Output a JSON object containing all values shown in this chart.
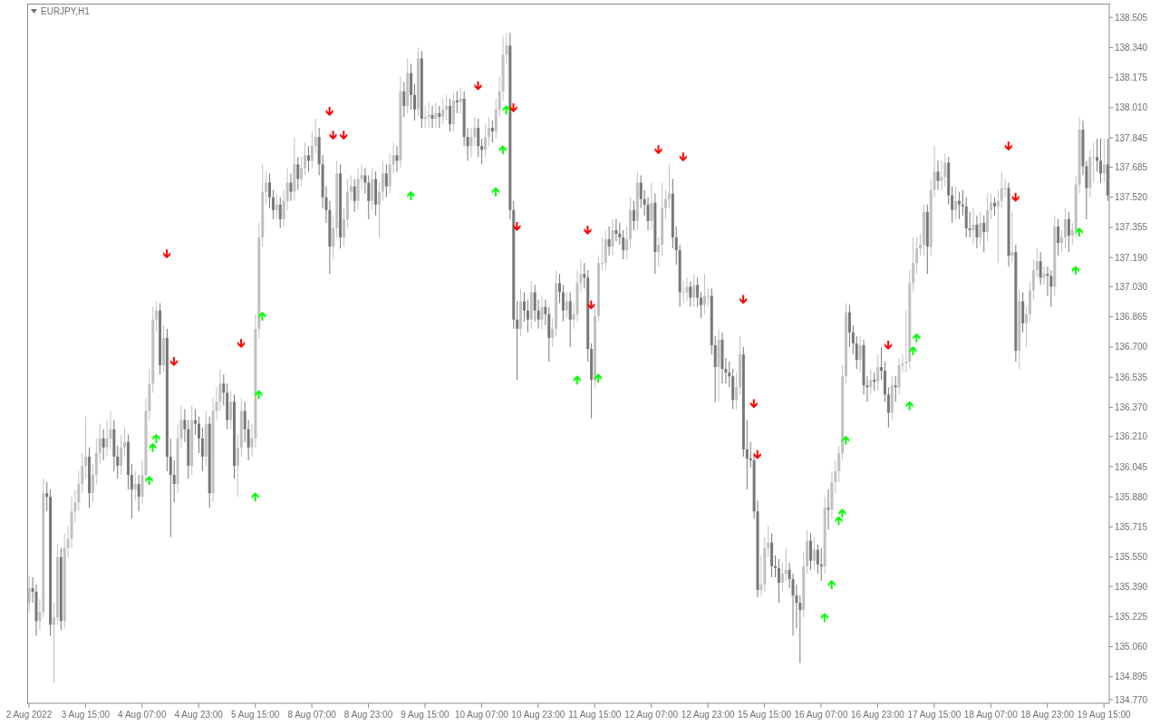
{
  "chart_data": {
    "type": "candlestick",
    "title": "EURJPY,H1",
    "categories": [
      "2 Aug 2022",
      null,
      null,
      null,
      null,
      null,
      null,
      null,
      null,
      null,
      null,
      null,
      null,
      null,
      null,
      null,
      "3 Aug 15:00",
      null,
      null,
      null,
      null,
      null,
      null,
      null,
      null,
      null,
      null,
      null,
      null,
      null,
      null,
      null,
      "4 Aug 07:00",
      null,
      null,
      null,
      null,
      null,
      null,
      null,
      null,
      null,
      null,
      null,
      null,
      null,
      null,
      null,
      "4 Aug 23:00",
      null,
      null,
      null,
      null,
      null,
      null,
      null,
      null,
      null,
      null,
      null,
      null,
      null,
      null,
      null,
      "5 Aug 15:00",
      null,
      null,
      null,
      null,
      null,
      null,
      null,
      null,
      null,
      null,
      null,
      null,
      null,
      null,
      null,
      "8 Aug 07:00",
      null,
      null,
      null,
      null,
      null,
      null,
      null,
      null,
      null,
      null,
      null,
      null,
      null,
      null,
      null,
      "8 Aug 23:00",
      null,
      null,
      null,
      null,
      null,
      null,
      null,
      null,
      null,
      null,
      null,
      null,
      null,
      null,
      null,
      "9 Aug 15:00",
      null,
      null,
      null,
      null,
      null,
      null,
      null,
      null,
      null,
      null,
      null,
      null,
      null,
      null,
      null,
      "10 Aug 07:00",
      null,
      null,
      null,
      null,
      null,
      null,
      null,
      null,
      null,
      null,
      null,
      null,
      null,
      null,
      null,
      "10 Aug 23:00",
      null,
      null,
      null,
      null,
      null,
      null,
      null,
      null,
      null,
      null,
      null,
      null,
      null,
      null,
      null,
      "11 Aug 15:00",
      null,
      null,
      null,
      null,
      null,
      null,
      null,
      null,
      null,
      null,
      null,
      null,
      null,
      null,
      null,
      "12 Aug 07:00",
      null,
      null,
      null,
      null,
      null,
      null,
      null,
      null,
      null,
      null,
      null,
      null,
      null,
      null,
      null,
      "12 Aug 23:00",
      null,
      null,
      null,
      null,
      null,
      null,
      null,
      null,
      null,
      null,
      null,
      null,
      null,
      null,
      null,
      "15 Aug 15:00",
      null,
      null,
      null,
      null,
      null,
      null,
      null,
      null,
      null,
      null,
      null,
      null,
      null,
      null,
      null,
      "16 Aug 07:00",
      null,
      null,
      null,
      null,
      null,
      null,
      null,
      null,
      null,
      null,
      null,
      null,
      null,
      null,
      null,
      "16 Aug 23:00",
      null,
      null,
      null,
      null,
      null,
      null,
      null,
      null,
      null,
      null,
      null,
      null,
      null,
      null,
      null,
      "17 Aug 15:00",
      null,
      null,
      null,
      null,
      null,
      null,
      null,
      null,
      null,
      null,
      null,
      null,
      null,
      null,
      null,
      "18 Aug 07:00",
      null,
      null,
      null,
      null,
      null,
      null,
      null,
      null,
      null,
      null,
      null,
      null,
      null,
      null,
      null,
      "18 Aug 23:00",
      null,
      null,
      null,
      null,
      null,
      null,
      null,
      null,
      null,
      null,
      null,
      null,
      null,
      null,
      null,
      "19 Aug 15:00",
      null
    ],
    "ohlc": [
      [
        135.3,
        135.45,
        135.25,
        135.38
      ],
      [
        135.38,
        135.44,
        135.3,
        135.36
      ],
      [
        135.36,
        135.4,
        135.12,
        135.2
      ],
      [
        135.2,
        135.32,
        135.15,
        135.25
      ],
      [
        135.25,
        135.98,
        135.22,
        135.9
      ],
      [
        135.9,
        135.96,
        135.8,
        135.88
      ],
      [
        135.88,
        135.92,
        135.12,
        135.18
      ],
      [
        135.18,
        135.3,
        134.86,
        135.22
      ],
      [
        135.22,
        135.62,
        135.18,
        135.55
      ],
      [
        135.55,
        135.6,
        135.15,
        135.2
      ],
      [
        135.2,
        135.68,
        135.16,
        135.6
      ],
      [
        135.6,
        135.72,
        135.55,
        135.65
      ],
      [
        135.65,
        135.88,
        135.6,
        135.8
      ],
      [
        135.8,
        135.92,
        135.74,
        135.85
      ],
      [
        135.85,
        136.02,
        135.8,
        135.95
      ],
      [
        135.95,
        136.12,
        135.9,
        136.05
      ],
      [
        136.05,
        136.32,
        135.98,
        136.1
      ],
      [
        136.1,
        136.15,
        135.82,
        135.9
      ],
      [
        135.9,
        136.06,
        135.85,
        136.0
      ],
      [
        136.0,
        136.2,
        135.95,
        136.12
      ],
      [
        136.12,
        136.28,
        136.06,
        136.2
      ],
      [
        136.2,
        136.25,
        136.08,
        136.15
      ],
      [
        136.15,
        136.3,
        136.1,
        136.2
      ],
      [
        136.2,
        136.35,
        136.14,
        136.25
      ],
      [
        136.25,
        136.3,
        136.02,
        136.1
      ],
      [
        136.1,
        136.16,
        135.98,
        136.05
      ],
      [
        136.05,
        136.22,
        136.0,
        136.15
      ],
      [
        136.15,
        136.26,
        136.1,
        136.18
      ],
      [
        136.18,
        136.22,
        135.92,
        136.0
      ],
      [
        136.0,
        136.06,
        135.76,
        135.92
      ],
      [
        135.92,
        136.02,
        135.86,
        135.95
      ],
      [
        135.95,
        136.0,
        135.8,
        135.88
      ],
      [
        135.88,
        136.08,
        135.84,
        136.0
      ],
      [
        136.0,
        136.42,
        135.96,
        136.35
      ],
      [
        136.35,
        136.58,
        136.3,
        136.5
      ],
      [
        136.5,
        136.92,
        136.45,
        136.85
      ],
      [
        136.85,
        136.95,
        136.78,
        136.9
      ],
      [
        136.9,
        136.94,
        136.55,
        136.6
      ],
      [
        136.6,
        136.82,
        136.56,
        136.75
      ],
      [
        136.75,
        136.8,
        136.02,
        136.1
      ],
      [
        136.1,
        136.2,
        135.66,
        136.0
      ],
      [
        136.0,
        136.08,
        135.85,
        135.95
      ],
      [
        135.95,
        136.28,
        135.9,
        136.2
      ],
      [
        136.2,
        136.38,
        136.15,
        136.3
      ],
      [
        136.3,
        136.36,
        136.18,
        136.25
      ],
      [
        136.25,
        136.3,
        135.98,
        136.05
      ],
      [
        136.05,
        136.38,
        136.0,
        136.3
      ],
      [
        136.3,
        136.36,
        136.22,
        136.28
      ],
      [
        136.28,
        136.32,
        136.12,
        136.2
      ],
      [
        136.2,
        136.26,
        136.02,
        136.1
      ],
      [
        136.1,
        136.35,
        136.05,
        136.28
      ],
      [
        136.28,
        136.32,
        135.82,
        135.9
      ],
      [
        135.9,
        136.42,
        135.85,
        136.35
      ],
      [
        136.35,
        136.48,
        136.3,
        136.4
      ],
      [
        136.4,
        136.58,
        136.35,
        136.5
      ],
      [
        136.5,
        136.55,
        136.38,
        136.45
      ],
      [
        136.45,
        136.5,
        136.25,
        136.3
      ],
      [
        136.3,
        136.46,
        136.25,
        136.4
      ],
      [
        136.4,
        136.44,
        135.98,
        136.05
      ],
      [
        136.05,
        136.22,
        135.88,
        136.15
      ],
      [
        136.15,
        136.42,
        136.1,
        136.35
      ],
      [
        136.35,
        136.4,
        136.18,
        136.25
      ],
      [
        136.25,
        136.3,
        136.08,
        136.15
      ],
      [
        136.15,
        136.28,
        136.1,
        136.2
      ],
      [
        136.2,
        136.88,
        136.15,
        136.8
      ],
      [
        136.8,
        137.38,
        136.75,
        137.3
      ],
      [
        137.3,
        137.7,
        137.25,
        137.55
      ],
      [
        137.55,
        137.66,
        137.48,
        137.6
      ],
      [
        137.6,
        137.65,
        137.46,
        137.52
      ],
      [
        137.52,
        137.56,
        137.4,
        137.45
      ],
      [
        137.45,
        137.54,
        137.4,
        137.48
      ],
      [
        137.48,
        137.52,
        137.35,
        137.4
      ],
      [
        137.4,
        137.56,
        137.36,
        137.5
      ],
      [
        137.5,
        137.68,
        137.45,
        137.6
      ],
      [
        137.6,
        137.65,
        137.5,
        137.55
      ],
      [
        137.55,
        137.85,
        137.5,
        137.7
      ],
      [
        137.7,
        137.74,
        137.56,
        137.62
      ],
      [
        137.62,
        137.74,
        137.58,
        137.68
      ],
      [
        137.68,
        137.82,
        137.64,
        137.75
      ],
      [
        137.75,
        137.8,
        137.66,
        137.72
      ],
      [
        137.72,
        137.88,
        137.68,
        137.8
      ],
      [
        137.8,
        137.95,
        137.76,
        137.85
      ],
      [
        137.85,
        137.9,
        137.64,
        137.7
      ],
      [
        137.7,
        137.75,
        137.46,
        137.52
      ],
      [
        137.52,
        137.58,
        137.38,
        137.45
      ],
      [
        137.45,
        137.5,
        137.1,
        137.25
      ],
      [
        137.25,
        137.42,
        137.18,
        137.35
      ],
      [
        137.35,
        137.72,
        137.3,
        137.65
      ],
      [
        137.65,
        137.7,
        137.24,
        137.3
      ],
      [
        137.3,
        137.46,
        137.25,
        137.4
      ],
      [
        137.4,
        137.62,
        137.35,
        137.55
      ],
      [
        137.55,
        137.64,
        137.5,
        137.58
      ],
      [
        137.58,
        137.62,
        137.44,
        137.5
      ],
      [
        137.5,
        137.68,
        137.45,
        137.62
      ],
      [
        137.62,
        137.7,
        137.56,
        137.64
      ],
      [
        137.64,
        137.68,
        137.54,
        137.6
      ],
      [
        137.6,
        137.64,
        137.4,
        137.5
      ],
      [
        137.5,
        137.68,
        137.45,
        137.62
      ],
      [
        137.62,
        137.66,
        137.42,
        137.48
      ],
      [
        137.48,
        137.6,
        137.3,
        137.55
      ],
      [
        137.55,
        137.72,
        137.5,
        137.65
      ],
      [
        137.65,
        137.7,
        137.52,
        137.58
      ],
      [
        137.58,
        137.76,
        137.54,
        137.7
      ],
      [
        137.7,
        137.82,
        137.65,
        137.75
      ],
      [
        137.75,
        137.8,
        137.66,
        137.72
      ],
      [
        137.72,
        138.18,
        137.68,
        138.1
      ],
      [
        138.1,
        138.15,
        137.96,
        138.02
      ],
      [
        138.02,
        138.28,
        137.98,
        138.2
      ],
      [
        138.2,
        138.25,
        138.0,
        138.08
      ],
      [
        138.08,
        138.14,
        137.94,
        138.0
      ],
      [
        138.0,
        138.34,
        137.96,
        138.28
      ],
      [
        138.28,
        138.32,
        137.9,
        137.95
      ],
      [
        137.95,
        138.02,
        137.9,
        137.96
      ],
      [
        137.96,
        138.04,
        137.9,
        137.97
      ],
      [
        137.97,
        138.02,
        137.9,
        137.95
      ],
      [
        137.95,
        138.04,
        137.9,
        137.98
      ],
      [
        137.98,
        138.02,
        137.9,
        137.96
      ],
      [
        137.96,
        138.06,
        137.92,
        138.0
      ],
      [
        138.0,
        138.08,
        137.94,
        138.02
      ],
      [
        138.02,
        138.06,
        137.88,
        137.92
      ],
      [
        137.92,
        138.1,
        137.88,
        138.05
      ],
      [
        138.05,
        138.1,
        137.98,
        138.04
      ],
      [
        138.04,
        138.12,
        137.98,
        138.06
      ],
      [
        138.06,
        138.1,
        137.8,
        137.85
      ],
      [
        137.85,
        137.9,
        137.72,
        137.8
      ],
      [
        137.8,
        137.9,
        137.74,
        137.85
      ],
      [
        137.85,
        137.96,
        137.8,
        137.9
      ],
      [
        137.9,
        137.95,
        137.74,
        137.8
      ],
      [
        137.8,
        137.84,
        137.7,
        137.78
      ],
      [
        137.78,
        137.92,
        137.74,
        137.85
      ],
      [
        137.85,
        137.96,
        137.8,
        137.9
      ],
      [
        137.9,
        137.94,
        137.82,
        137.88
      ],
      [
        137.88,
        138.06,
        137.84,
        138.0
      ],
      [
        138.0,
        138.18,
        137.96,
        138.1
      ],
      [
        138.1,
        138.4,
        138.05,
        138.3
      ],
      [
        138.3,
        138.42,
        138.25,
        138.35
      ],
      [
        138.35,
        138.42,
        137.4,
        137.45
      ],
      [
        137.45,
        137.5,
        136.8,
        136.85
      ],
      [
        136.85,
        136.95,
        136.52,
        136.8
      ],
      [
        136.8,
        137.02,
        136.76,
        136.95
      ],
      [
        136.95,
        137.0,
        136.84,
        136.9
      ],
      [
        136.9,
        136.96,
        136.78,
        136.85
      ],
      [
        136.85,
        137.06,
        136.8,
        137.0
      ],
      [
        137.0,
        137.04,
        136.84,
        136.9
      ],
      [
        136.9,
        136.96,
        136.8,
        136.85
      ],
      [
        136.85,
        136.98,
        136.8,
        136.92
      ],
      [
        136.92,
        136.96,
        136.82,
        136.88
      ],
      [
        136.88,
        136.92,
        136.62,
        136.75
      ],
      [
        136.75,
        136.86,
        136.7,
        136.8
      ],
      [
        136.8,
        137.12,
        136.76,
        137.05
      ],
      [
        137.05,
        137.1,
        136.94,
        137.0
      ],
      [
        137.0,
        137.04,
        136.84,
        136.9
      ],
      [
        136.9,
        137.0,
        136.86,
        136.95
      ],
      [
        136.95,
        137.0,
        136.7,
        136.85
      ],
      [
        136.85,
        136.94,
        136.8,
        136.88
      ],
      [
        136.88,
        137.12,
        136.84,
        137.05
      ],
      [
        137.05,
        137.18,
        137.0,
        137.1
      ],
      [
        137.1,
        137.16,
        137.02,
        137.08
      ],
      [
        137.08,
        137.12,
        136.62,
        136.69
      ],
      [
        136.69,
        136.72,
        136.31,
        136.52
      ],
      [
        136.52,
        136.92,
        136.48,
        136.87
      ],
      [
        136.87,
        137.2,
        136.84,
        137.16
      ],
      [
        137.16,
        137.3,
        137.12,
        137.16
      ],
      [
        137.16,
        137.34,
        137.12,
        137.29
      ],
      [
        137.29,
        137.36,
        137.2,
        137.25
      ],
      [
        137.25,
        137.4,
        137.2,
        137.34
      ],
      [
        137.34,
        137.4,
        137.28,
        137.32
      ],
      [
        137.32,
        137.38,
        137.26,
        137.3
      ],
      [
        137.3,
        137.34,
        137.18,
        137.23
      ],
      [
        137.23,
        137.36,
        137.18,
        137.29
      ],
      [
        137.29,
        137.52,
        137.24,
        137.45
      ],
      [
        137.45,
        137.5,
        137.34,
        137.39
      ],
      [
        137.39,
        137.66,
        137.34,
        137.6
      ],
      [
        137.6,
        137.64,
        137.46,
        137.51
      ],
      [
        137.51,
        137.56,
        137.42,
        137.48
      ],
      [
        137.48,
        137.52,
        137.34,
        137.39
      ],
      [
        137.39,
        137.6,
        137.34,
        137.49
      ],
      [
        137.49,
        137.54,
        137.1,
        137.22
      ],
      [
        137.22,
        137.3,
        137.14,
        137.26
      ],
      [
        137.26,
        137.6,
        137.2,
        137.46
      ],
      [
        137.46,
        137.56,
        137.4,
        137.51
      ],
      [
        137.51,
        137.7,
        137.46,
        137.54
      ],
      [
        137.54,
        137.62,
        137.24,
        137.3
      ],
      [
        137.3,
        137.36,
        137.15,
        137.23
      ],
      [
        137.23,
        137.26,
        136.92,
        137.0
      ],
      [
        137.0,
        137.06,
        136.94,
        137.0
      ],
      [
        137.0,
        137.08,
        136.95,
        137.03
      ],
      [
        137.03,
        137.06,
        136.92,
        136.97
      ],
      [
        136.97,
        137.1,
        136.92,
        137.04
      ],
      [
        137.04,
        137.08,
        136.92,
        136.97
      ],
      [
        136.97,
        137.0,
        136.86,
        136.93
      ],
      [
        136.93,
        137.1,
        136.88,
        136.98
      ],
      [
        136.98,
        137.02,
        136.92,
        136.98
      ],
      [
        136.98,
        137.02,
        136.66,
        136.71
      ],
      [
        136.71,
        136.76,
        136.4,
        136.59
      ],
      [
        136.59,
        136.8,
        136.4,
        136.74
      ],
      [
        136.74,
        136.78,
        136.5,
        136.58
      ],
      [
        136.58,
        136.64,
        136.5,
        136.56
      ],
      [
        136.56,
        136.62,
        136.48,
        136.54
      ],
      [
        136.54,
        136.58,
        136.36,
        136.41
      ],
      [
        136.41,
        136.56,
        136.36,
        136.48
      ],
      [
        136.48,
        136.76,
        136.44,
        136.66
      ],
      [
        136.66,
        136.7,
        136.1,
        136.14
      ],
      [
        136.14,
        136.3,
        135.92,
        136.09
      ],
      [
        136.09,
        136.18,
        136.04,
        136.08
      ],
      [
        136.08,
        136.12,
        135.76,
        135.8
      ],
      [
        135.8,
        135.86,
        135.33,
        135.37
      ],
      [
        135.37,
        135.56,
        135.34,
        135.4
      ],
      [
        135.4,
        135.66,
        135.36,
        135.6
      ],
      [
        135.6,
        135.72,
        135.55,
        135.63
      ],
      [
        135.63,
        135.68,
        135.44,
        135.5
      ],
      [
        135.5,
        135.56,
        135.44,
        135.49
      ],
      [
        135.49,
        135.54,
        135.3,
        135.41
      ],
      [
        135.41,
        135.52,
        135.36,
        135.46
      ],
      [
        135.46,
        135.6,
        135.42,
        135.48
      ],
      [
        135.48,
        135.52,
        135.38,
        135.43
      ],
      [
        135.43,
        135.46,
        135.12,
        135.34
      ],
      [
        135.34,
        135.4,
        135.16,
        135.3
      ],
      [
        135.3,
        135.34,
        134.97,
        135.26
      ],
      [
        135.26,
        135.58,
        135.22,
        135.5
      ],
      [
        135.5,
        135.7,
        135.46,
        135.64
      ],
      [
        135.64,
        135.68,
        135.48,
        135.53
      ],
      [
        135.53,
        135.66,
        135.48,
        135.59
      ],
      [
        135.59,
        135.62,
        135.46,
        135.51
      ],
      [
        135.51,
        135.6,
        135.42,
        135.5
      ],
      [
        135.5,
        135.88,
        135.46,
        135.82
      ],
      [
        135.82,
        135.92,
        135.7,
        135.81
      ],
      [
        135.81,
        136.02,
        135.76,
        135.96
      ],
      [
        135.96,
        136.08,
        135.9,
        136.02
      ],
      [
        136.02,
        136.16,
        135.96,
        136.12
      ],
      [
        136.12,
        136.6,
        136.08,
        136.54
      ],
      [
        136.54,
        136.94,
        136.5,
        136.89
      ],
      [
        136.89,
        136.93,
        136.7,
        136.78
      ],
      [
        136.78,
        136.82,
        136.66,
        136.72
      ],
      [
        136.72,
        136.76,
        136.58,
        136.63
      ],
      [
        136.63,
        136.76,
        136.56,
        136.71
      ],
      [
        136.71,
        136.74,
        136.44,
        136.49
      ],
      [
        136.49,
        136.54,
        136.4,
        136.48
      ],
      [
        136.48,
        136.58,
        136.44,
        136.52
      ],
      [
        136.52,
        136.56,
        136.46,
        136.51
      ],
      [
        136.51,
        136.66,
        136.46,
        136.59
      ],
      [
        136.59,
        136.7,
        136.52,
        136.57
      ],
      [
        136.57,
        136.62,
        136.4,
        136.44
      ],
      [
        136.44,
        136.48,
        136.26,
        136.34
      ],
      [
        136.34,
        136.54,
        136.3,
        136.49
      ],
      [
        136.49,
        136.54,
        136.4,
        136.48
      ],
      [
        136.48,
        136.64,
        136.44,
        136.6
      ],
      [
        136.6,
        136.66,
        136.56,
        136.61
      ],
      [
        136.61,
        136.9,
        136.56,
        136.62
      ],
      [
        136.62,
        137.12,
        136.58,
        137.05
      ],
      [
        137.05,
        137.3,
        137.0,
        137.16
      ],
      [
        137.16,
        137.3,
        137.1,
        137.24
      ],
      [
        137.24,
        137.32,
        137.2,
        137.26
      ],
      [
        137.26,
        137.48,
        137.2,
        137.44
      ],
      [
        137.44,
        137.48,
        137.1,
        137.25
      ],
      [
        137.25,
        137.62,
        137.2,
        137.56
      ],
      [
        137.56,
        137.8,
        137.52,
        137.66
      ],
      [
        137.66,
        137.72,
        137.56,
        137.61
      ],
      [
        137.61,
        137.72,
        137.56,
        137.63
      ],
      [
        137.63,
        137.76,
        137.58,
        137.71
      ],
      [
        137.71,
        137.74,
        137.48,
        137.53
      ],
      [
        137.53,
        137.58,
        137.38,
        137.45
      ],
      [
        137.45,
        137.58,
        137.4,
        137.5
      ],
      [
        137.5,
        137.55,
        137.4,
        137.48
      ],
      [
        137.48,
        137.56,
        137.42,
        137.47
      ],
      [
        137.47,
        137.52,
        137.3,
        137.35
      ],
      [
        137.35,
        137.44,
        137.3,
        137.34
      ],
      [
        137.34,
        137.46,
        137.26,
        137.37
      ],
      [
        137.37,
        137.42,
        137.24,
        137.3
      ],
      [
        137.3,
        137.44,
        137.26,
        137.38
      ],
      [
        137.38,
        137.42,
        137.22,
        137.33
      ],
      [
        137.33,
        137.54,
        137.28,
        137.45
      ],
      [
        137.45,
        137.54,
        137.4,
        137.49
      ],
      [
        137.49,
        137.52,
        137.42,
        137.47
      ],
      [
        137.47,
        137.56,
        137.16,
        137.5
      ],
      [
        137.5,
        137.66,
        137.46,
        137.57
      ],
      [
        137.57,
        137.62,
        137.52,
        137.57
      ],
      [
        137.57,
        137.6,
        137.14,
        137.2
      ],
      [
        137.2,
        137.44,
        137.16,
        137.22
      ],
      [
        137.22,
        137.26,
        136.62,
        136.68
      ],
      [
        136.68,
        137.02,
        136.58,
        136.95
      ],
      [
        136.95,
        137.0,
        136.78,
        136.83
      ],
      [
        136.83,
        136.92,
        136.7,
        136.88
      ],
      [
        136.88,
        137.06,
        136.84,
        137.01
      ],
      [
        137.01,
        137.18,
        136.96,
        137.12
      ],
      [
        137.12,
        137.24,
        137.08,
        137.17
      ],
      [
        137.17,
        137.22,
        137.04,
        137.08
      ],
      [
        137.08,
        137.14,
        137.04,
        137.1
      ],
      [
        137.1,
        137.14,
        136.98,
        137.09
      ],
      [
        137.09,
        137.12,
        136.92,
        137.03
      ],
      [
        137.03,
        137.42,
        136.98,
        137.36
      ],
      [
        137.36,
        137.4,
        137.2,
        137.27
      ],
      [
        137.27,
        137.34,
        137.22,
        137.3
      ],
      [
        137.3,
        137.46,
        137.24,
        137.4
      ],
      [
        137.4,
        137.44,
        137.22,
        137.31
      ],
      [
        137.31,
        137.38,
        137.26,
        137.34
      ],
      [
        137.34,
        137.64,
        137.3,
        137.59
      ],
      [
        137.59,
        137.96,
        137.54,
        137.89
      ],
      [
        137.89,
        137.94,
        137.64,
        137.69
      ],
      [
        137.69,
        137.72,
        137.4,
        137.57
      ],
      [
        137.57,
        137.78,
        137.52,
        137.74
      ],
      [
        137.74,
        137.82,
        137.6,
        137.74
      ],
      [
        137.74,
        137.84,
        137.66,
        137.72
      ],
      [
        137.72,
        137.84,
        137.6,
        137.65
      ],
      [
        137.65,
        137.84,
        137.6,
        137.7
      ],
      [
        137.7,
        137.84,
        137.5,
        137.53
      ]
    ],
    "series": [
      {
        "type": "scatter",
        "color": "#ff0000",
        "values": [
          null,
          null,
          null,
          null,
          null,
          null,
          null,
          null,
          null,
          null,
          null,
          null,
          null,
          null,
          null,
          null,
          null,
          null,
          null,
          null,
          null,
          null,
          null,
          null,
          null,
          null,
          null,
          null,
          null,
          null,
          null,
          null,
          null,
          null,
          null,
          null,
          null,
          null,
          null,
          137.21,
          null,
          136.62,
          null,
          null,
          null,
          null,
          null,
          null,
          null,
          null,
          null,
          null,
          null,
          null,
          null,
          null,
          null,
          null,
          null,
          null,
          136.72,
          null,
          null,
          null,
          null,
          null,
          null,
          null,
          null,
          null,
          null,
          null,
          null,
          null,
          null,
          null,
          null,
          null,
          null,
          null,
          null,
          null,
          null,
          null,
          null,
          137.99,
          137.86,
          null,
          null,
          137.86,
          null,
          null,
          null,
          null,
          null,
          null,
          null,
          null,
          null,
          null,
          null,
          null,
          null,
          null,
          null,
          null,
          null,
          null,
          null,
          null,
          null,
          null,
          null,
          null,
          null,
          null,
          null,
          null,
          null,
          null,
          null,
          null,
          null,
          null,
          null,
          null,
          null,
          138.13,
          null,
          null,
          null,
          null,
          null,
          null,
          null,
          null,
          null,
          138.01,
          137.36,
          null,
          null,
          null,
          null,
          null,
          null,
          null,
          null,
          null,
          null,
          null,
          null,
          null,
          null,
          null,
          null,
          null,
          null,
          null,
          137.34,
          136.93,
          null,
          null,
          null,
          null,
          null,
          null,
          null,
          null,
          null,
          null,
          null,
          null,
          null,
          null,
          null,
          null,
          null,
          null,
          137.78,
          null,
          null,
          null,
          null,
          null,
          null,
          137.74,
          null,
          null,
          null,
          null,
          null,
          null,
          null,
          null,
          null,
          null,
          null,
          null,
          null,
          null,
          null,
          null,
          136.96,
          null,
          null,
          136.39,
          136.11,
          null,
          null,
          null,
          null,
          null,
          null,
          null,
          null,
          null,
          null,
          null,
          null,
          null,
          null,
          null,
          null,
          null,
          null,
          null,
          null,
          null,
          null,
          null,
          null,
          null,
          null,
          null,
          null,
          null,
          null,
          null,
          null,
          null,
          null,
          null,
          null,
          136.71,
          null,
          null,
          null,
          null,
          null,
          null,
          null,
          null,
          null,
          null,
          null,
          null,
          null,
          null,
          null,
          null,
          null,
          null,
          null,
          null,
          null,
          null,
          null,
          null,
          null,
          null,
          null,
          null,
          null,
          null,
          null,
          null,
          null,
          137.8,
          null,
          137.52,
          null,
          null,
          null,
          null,
          null,
          null,
          null,
          null,
          null,
          null,
          null,
          null,
          null,
          null,
          null,
          null,
          null,
          null,
          null,
          null,
          null,
          null,
          null,
          null,
          null,
          null
        ]
      },
      {
        "type": "scatter",
        "color": "#00ff00",
        "values": [
          null,
          null,
          null,
          null,
          null,
          null,
          null,
          null,
          null,
          null,
          null,
          null,
          null,
          null,
          null,
          null,
          null,
          null,
          null,
          null,
          null,
          null,
          null,
          null,
          null,
          null,
          null,
          null,
          null,
          null,
          null,
          null,
          null,
          null,
          135.97,
          136.15,
          136.2,
          null,
          null,
          null,
          null,
          null,
          null,
          null,
          null,
          null,
          null,
          null,
          null,
          null,
          null,
          null,
          null,
          null,
          null,
          null,
          null,
          null,
          null,
          null,
          null,
          null,
          null,
          null,
          135.88,
          136.44,
          136.87,
          null,
          null,
          null,
          null,
          null,
          null,
          null,
          null,
          null,
          null,
          null,
          null,
          null,
          null,
          null,
          null,
          null,
          null,
          null,
          null,
          null,
          null,
          null,
          null,
          null,
          null,
          null,
          null,
          null,
          null,
          null,
          null,
          null,
          null,
          null,
          null,
          null,
          null,
          null,
          null,
          null,
          137.53,
          null,
          null,
          null,
          null,
          null,
          null,
          null,
          null,
          null,
          null,
          null,
          null,
          null,
          null,
          null,
          null,
          null,
          null,
          null,
          null,
          null,
          null,
          null,
          137.55,
          null,
          137.78,
          138.0,
          null,
          null,
          null,
          null,
          null,
          null,
          null,
          null,
          null,
          null,
          null,
          null,
          null,
          null,
          null,
          null,
          null,
          null,
          null,
          136.52,
          null,
          null,
          null,
          null,
          null,
          136.53,
          null,
          null,
          null,
          null,
          null,
          null,
          null,
          null,
          null,
          null,
          null,
          null,
          null,
          null,
          null,
          null,
          null,
          null,
          null,
          null,
          null,
          null,
          null,
          null,
          null,
          null,
          null,
          null,
          null,
          null,
          null,
          null,
          null,
          null,
          null,
          null,
          null,
          null,
          null,
          null,
          null,
          null,
          null,
          null,
          null,
          null,
          null,
          null,
          null,
          null,
          null,
          null,
          null,
          null,
          null,
          null,
          null,
          null,
          null,
          null,
          null,
          null,
          null,
          135.22,
          null,
          135.4,
          null,
          135.75,
          135.79,
          136.19,
          null,
          null,
          null,
          null,
          null,
          null,
          null,
          null,
          null,
          null,
          null,
          null,
          null,
          null,
          null,
          null,
          null,
          136.38,
          136.68,
          136.75,
          null,
          null,
          null,
          null,
          null,
          null,
          null,
          null,
          null,
          null,
          null,
          null,
          null,
          null,
          null,
          null,
          null,
          null,
          null,
          null,
          null,
          null,
          null,
          null,
          null,
          null,
          null,
          null,
          null,
          null,
          null,
          null,
          null,
          null,
          null,
          null,
          null,
          null,
          null,
          null,
          null,
          null,
          null,
          null,
          137.12,
          137.33,
          null,
          null,
          null,
          null,
          null,
          null,
          null,
          null
        ]
      }
    ],
    "ylim": [
      134.75,
      138.58
    ],
    "yticks": [
      {
        "value": 134.77,
        "label": "134.770"
      },
      134.895,
      {
        "value": 135.06,
        "label": "135.060"
      },
      135.225,
      {
        "value": 135.39,
        "label": "135.390"
      },
      {
        "value": 135.55,
        "label": "135.550"
      },
      135.715,
      {
        "value": 135.88,
        "label": "135.880"
      },
      136.045,
      {
        "value": 136.21,
        "label": "136.210"
      },
      {
        "value": 136.37,
        "label": "136.370"
      },
      136.535,
      {
        "value": 136.7,
        "label": "136.700"
      },
      136.865,
      {
        "value": 137.03,
        "label": "137.030"
      },
      {
        "value": 137.19,
        "label": "137.190"
      },
      137.355,
      {
        "value": 137.52,
        "label": "137.520"
      },
      137.685,
      137.845,
      {
        "value": 138.01,
        "label": "138.010"
      },
      138.175,
      {
        "value": 138.34,
        "label": "138.340"
      },
      138.505
    ]
  }
}
